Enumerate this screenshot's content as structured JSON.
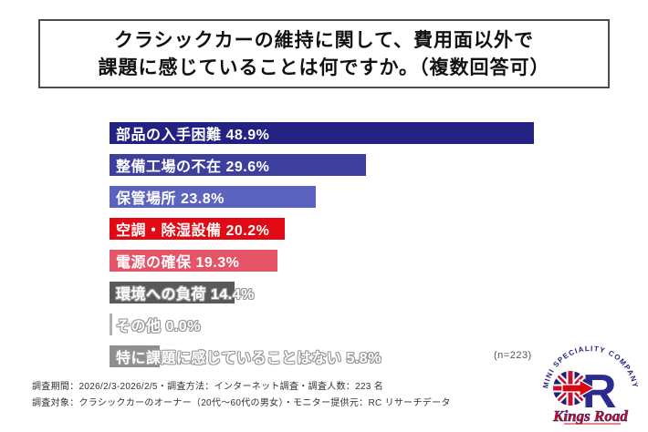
{
  "title": {
    "line1": "クラシックカーの維持に関して、費用面以外で",
    "line2": "課題に感じていることは何ですか。（複数回答可）"
  },
  "chart_data": {
    "type": "bar",
    "orientation": "horizontal",
    "title": "クラシックカーの維持に関して、費用面以外で課題に感じていることは何ですか。（複数回答可）",
    "categories": [
      "部品の入手困難",
      "整備工場の不在",
      "保管場所",
      "空調・除湿設備",
      "電源の確保",
      "環境への負荷",
      "その他",
      "特に課題に感じていることはない"
    ],
    "values": [
      48.9,
      29.6,
      23.8,
      20.2,
      19.3,
      14.4,
      0.0,
      5.8
    ],
    "value_labels": [
      "48.9%",
      "29.6%",
      "23.8%",
      "20.2%",
      "19.3%",
      "14.4%",
      "0.0%",
      "5.8%"
    ],
    "bar_colors": [
      "#232282",
      "#3e3f9d",
      "#5c63be",
      "#e00914",
      "#e55568",
      "#595959",
      "#b0b0b0",
      "#8f8f8f"
    ],
    "xlim": [
      0,
      50
    ],
    "grid": false,
    "legend": "none",
    "sample_note": "(n=223)"
  },
  "footer": {
    "line1": "調査期間：2026/2/3-2026/2/5・調査方法：インターネット調査・調査人数：223 名",
    "line2": "調査対象：クラシックカーのオーナー（20代～60代の男女）・モニター提供元：RC リサーチデータ"
  },
  "logo": {
    "arc_text": "MINI SPECIALITY COMPANY",
    "brand": "Kings Road",
    "colors": {
      "navy": "#23237d",
      "red": "#d40a12",
      "flag_red": "#c8102e",
      "flag_navy": "#1e2170"
    }
  }
}
